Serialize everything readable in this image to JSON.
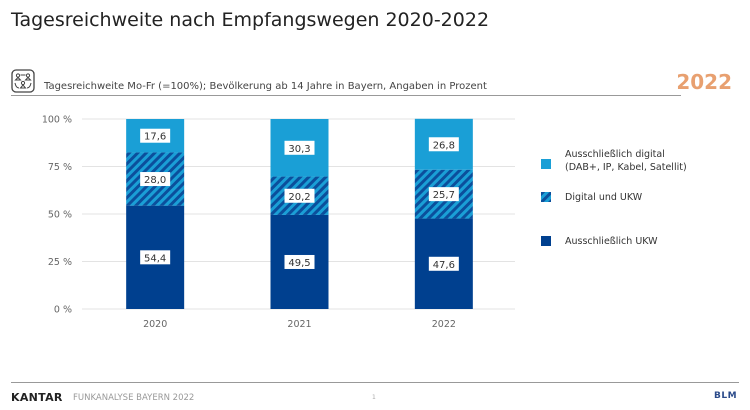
{
  "header": {
    "title": "Tagesreichweite nach Empfangswegen 2020-2022",
    "subtitle": "Tagesreichweite Mo-Fr (=100%); Bevölkerung ab 14 Jahre in Bayern, Angaben in Prozent",
    "year_badge": "2022",
    "icon": "audience-group-icon"
  },
  "colors": {
    "digital_only": "#1a9fd6",
    "digital_and_ukw_base": "#1a9fd6",
    "digital_and_ukw_stripe": "#0b4f9c",
    "ukw_only": "#00408f",
    "badge": "#e8a070",
    "grid": "#e3e3e3"
  },
  "chart_data": {
    "type": "bar",
    "stacked": true,
    "title": "Tagesreichweite nach Empfangswegen 2020-2022",
    "categories": [
      "2020",
      "2021",
      "2022"
    ],
    "series": [
      {
        "name": "Ausschließlich UKW",
        "values": [
          54.4,
          49.5,
          47.6
        ],
        "labels": [
          "54,4",
          "49,5",
          "47,6"
        ],
        "pattern": "solid-dark"
      },
      {
        "name": "Digital und UKW",
        "values": [
          28.0,
          20.2,
          25.7
        ],
        "labels": [
          "28,0",
          "20,2",
          "25,7"
        ],
        "pattern": "hatched"
      },
      {
        "name": "Ausschließlich digital\n(DAB+, IP, Kabel, Satellit)",
        "values": [
          17.6,
          30.3,
          26.8
        ],
        "labels": [
          "17,6",
          "30,3",
          "26,8"
        ],
        "pattern": "solid-light"
      }
    ],
    "yticks": [
      "0 %",
      "25 %",
      "50 %",
      "75 %",
      "100 %"
    ],
    "ytick_values": [
      0,
      25,
      50,
      75,
      100
    ],
    "ylim": [
      0,
      100
    ],
    "xlabel": "",
    "ylabel": "",
    "grid": true,
    "legend_position": "right"
  },
  "legend": {
    "items": [
      {
        "label": "Ausschließlich digital\n(DAB+, IP, Kabel, Satellit)",
        "icon": "solid-light-swatch"
      },
      {
        "label": "Digital und UKW",
        "icon": "hatched-swatch"
      },
      {
        "label": "Ausschließlich UKW",
        "icon": "solid-dark-swatch"
      }
    ]
  },
  "footer": {
    "brand": "KANTAR",
    "text": "FUNKANALYSE BAYERN 2022",
    "page": "1",
    "partner_logo": "BLM"
  }
}
